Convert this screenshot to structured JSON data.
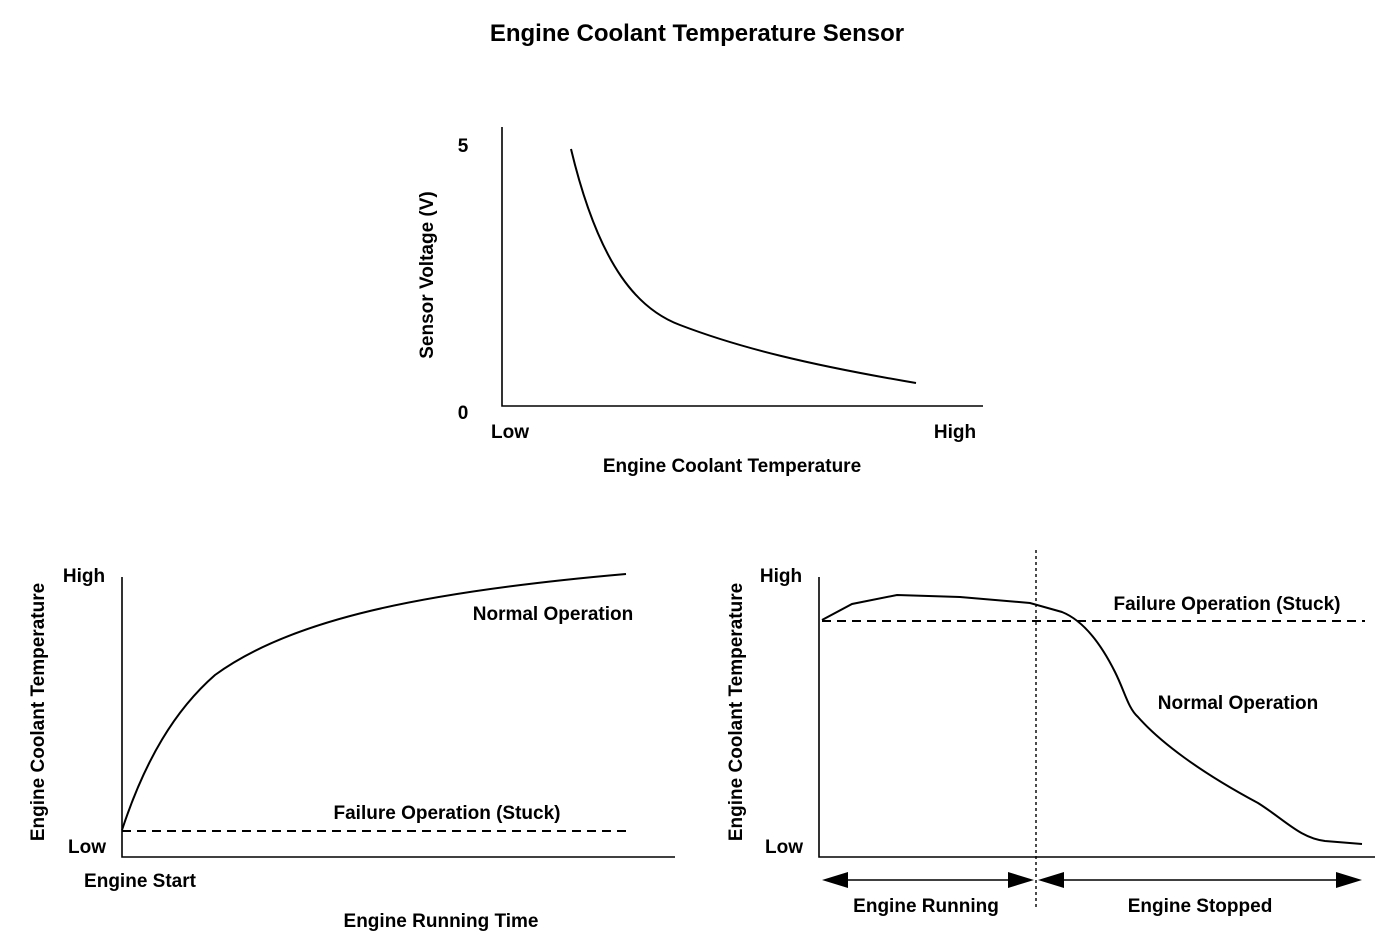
{
  "title": "Engine Coolant Temperature Sensor",
  "top_chart": {
    "y_label": "Sensor Voltage (V)",
    "y_tick_high": "5",
    "y_tick_low": "0",
    "x_tick_low": "Low",
    "x_tick_high": "High",
    "x_label": "Engine Coolant Temperature"
  },
  "bottom_left_chart": {
    "y_label": "Engine Coolant Temperature",
    "y_tick_high": "High",
    "y_tick_low": "Low",
    "x_tick_start": "Engine Start",
    "x_label": "Engine Running Time",
    "normal_label": "Normal Operation",
    "failure_label": "Failure Operation (Stuck)"
  },
  "bottom_right_chart": {
    "y_label": "Engine Coolant Temperature",
    "y_tick_high": "High",
    "y_tick_low": "Low",
    "failure_label": "Failure Operation (Stuck)",
    "normal_label": "Normal Operation",
    "running_label": "Engine Running",
    "stopped_label": "Engine Stopped"
  }
}
